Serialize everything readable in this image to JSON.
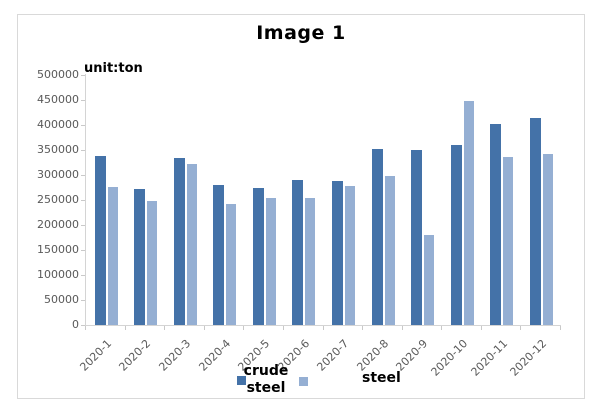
{
  "chart_data": {
    "type": "bar",
    "title": "Image 1",
    "unit_label": "unit:ton",
    "categories": [
      "2020-1",
      "2020-2",
      "2020-3",
      "2020-4",
      "2020-5",
      "2020-6",
      "2020-7",
      "2020-8",
      "2020-9",
      "2020-10",
      "2020-11",
      "2020-12"
    ],
    "series": [
      {
        "name": "crude steel",
        "color": "#4472a8",
        "values": [
          338000,
          272000,
          334000,
          280000,
          275000,
          291000,
          289000,
          353000,
          350000,
          361000,
          403000,
          415000
        ]
      },
      {
        "name": "steel",
        "color": "#95afd3",
        "values": [
          277000,
          249000,
          323000,
          242000,
          255000,
          255000,
          279000,
          298000,
          180000,
          449000,
          337000,
          342000
        ]
      }
    ],
    "xlabel": "",
    "ylabel": "",
    "ylim": [
      0,
      500000
    ],
    "ytick_step": 50000,
    "grid": false,
    "legend_position": "bottom",
    "legend_items": [
      {
        "label": "crude steel",
        "lines": [
          "crude",
          "steel"
        ]
      },
      {
        "label": "steel",
        "lines": [
          "steel"
        ]
      }
    ]
  }
}
